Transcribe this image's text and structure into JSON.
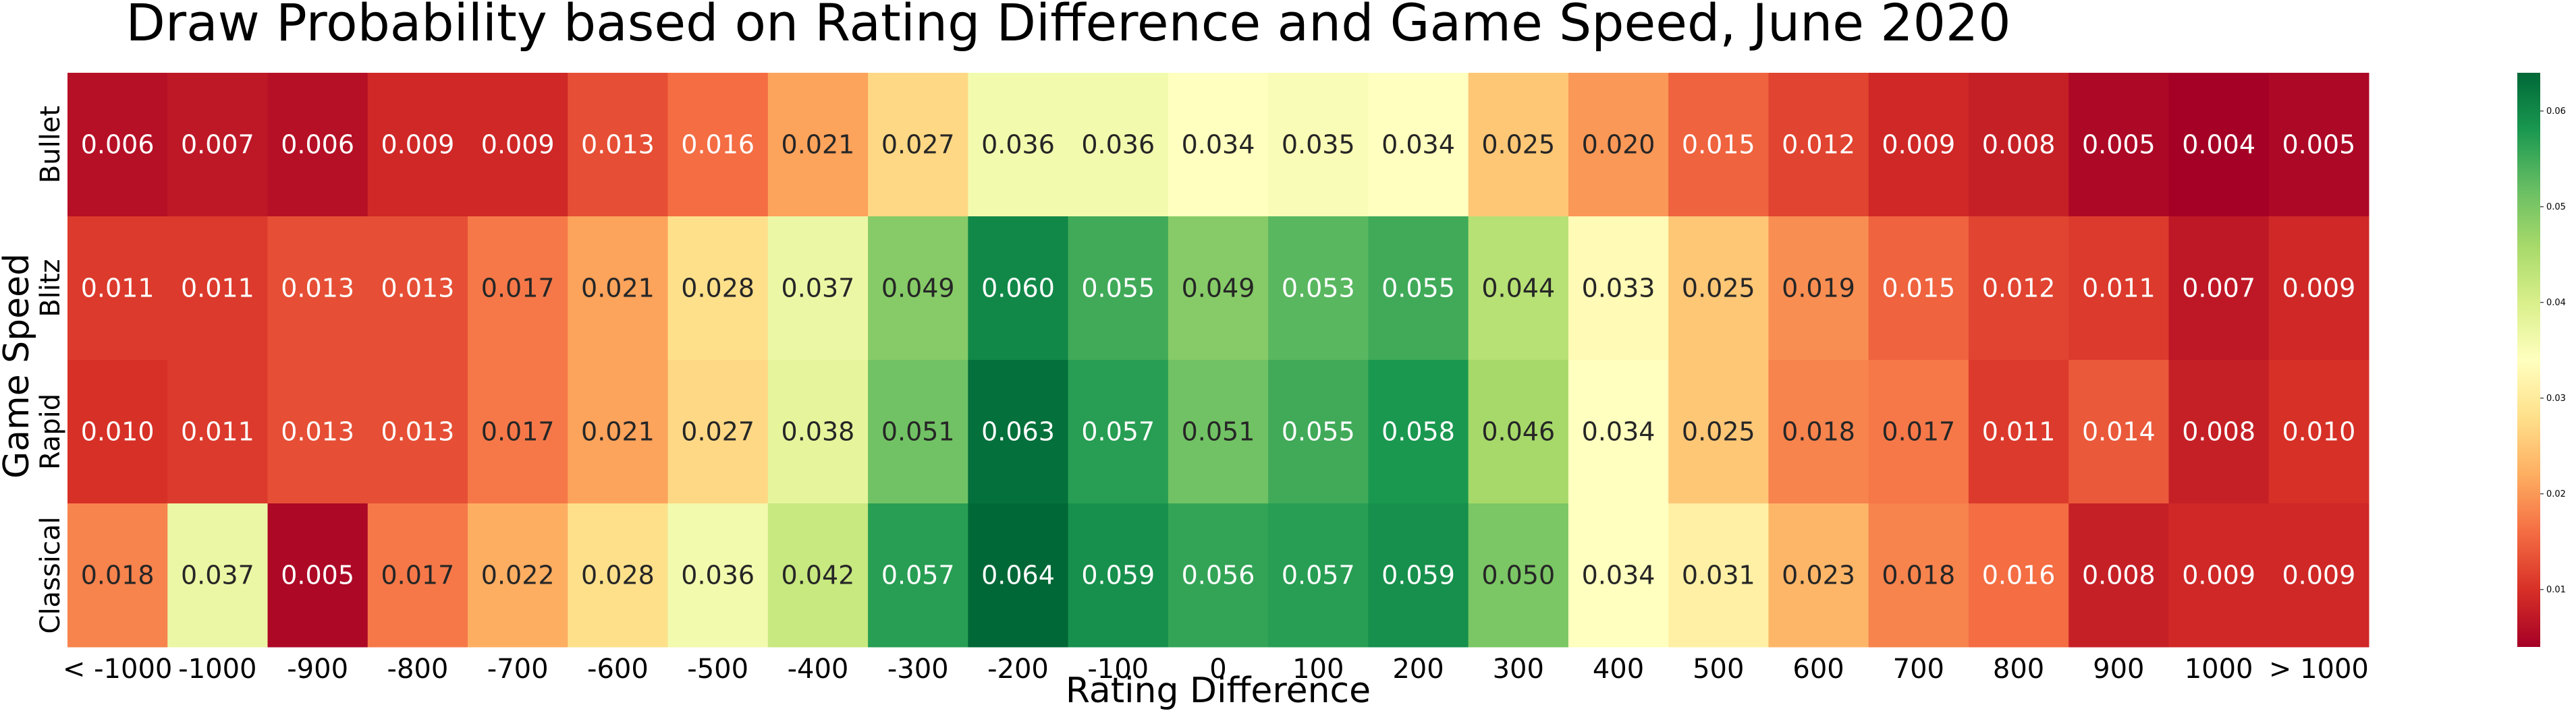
{
  "chart_data": {
    "type": "heatmap",
    "title": "Draw Probability based on Rating Difference and Game Speed, June 2020",
    "xlabel": "Rating Difference",
    "ylabel": "Game Speed",
    "x_categories": [
      "< -1000",
      "-1000",
      "-900",
      "-800",
      "-700",
      "-600",
      "-500",
      "-400",
      "-300",
      "-200",
      "-100",
      "0",
      "100",
      "200",
      "300",
      "400",
      "500",
      "600",
      "700",
      "800",
      "900",
      "1000",
      "> 1000"
    ],
    "y_categories": [
      "Bullet",
      "Blitz",
      "Rapid",
      "Classical"
    ],
    "values": [
      [
        0.006,
        0.007,
        0.006,
        0.009,
        0.009,
        0.013,
        0.016,
        0.021,
        0.027,
        0.036,
        0.036,
        0.034,
        0.035,
        0.034,
        0.025,
        0.02,
        0.015,
        0.012,
        0.009,
        0.008,
        0.005,
        0.004,
        0.005
      ],
      [
        0.011,
        0.011,
        0.013,
        0.013,
        0.017,
        0.021,
        0.028,
        0.037,
        0.049,
        0.06,
        0.055,
        0.049,
        0.053,
        0.055,
        0.044,
        0.033,
        0.025,
        0.019,
        0.015,
        0.012,
        0.011,
        0.007,
        0.009
      ],
      [
        0.01,
        0.011,
        0.013,
        0.013,
        0.017,
        0.021,
        0.027,
        0.038,
        0.051,
        0.063,
        0.057,
        0.051,
        0.055,
        0.058,
        0.046,
        0.034,
        0.025,
        0.018,
        0.017,
        0.011,
        0.014,
        0.008,
        0.01
      ],
      [
        0.018,
        0.037,
        0.005,
        0.017,
        0.022,
        0.028,
        0.036,
        0.042,
        0.057,
        0.064,
        0.059,
        0.056,
        0.057,
        0.059,
        0.05,
        0.034,
        0.031,
        0.023,
        0.018,
        0.016,
        0.008,
        0.009,
        0.009
      ]
    ],
    "value_format": "%.3f",
    "colormap": "RdYlGn",
    "color_range": [
      0.004,
      0.064
    ],
    "colorbar": {
      "ticks": [
        0.01,
        0.02,
        0.03,
        0.04,
        0.05,
        0.06
      ],
      "tick_labels": [
        "0.01",
        "0.02",
        "0.03",
        "0.04",
        "0.05",
        "0.06"
      ]
    }
  }
}
